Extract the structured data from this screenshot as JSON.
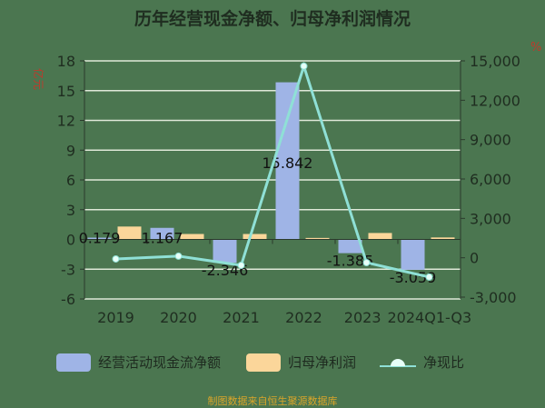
{
  "chart_data": {
    "type": "bar+line",
    "title": "历年经营现金净额、归母净利润情况",
    "ylabel_left": "亿元",
    "ylabel_right": "%",
    "categories": [
      "2019",
      "2020",
      "2021",
      "2022",
      "2023",
      "2024Q1-Q3"
    ],
    "left_axis": {
      "ylim": [
        -6,
        18
      ],
      "ticks": [
        -6,
        -3,
        0,
        3,
        6,
        9,
        12,
        15,
        18
      ]
    },
    "right_axis": {
      "ylim": [
        -3000,
        15000
      ],
      "ticks": [
        "-3,000",
        "0",
        "3,000",
        "6,000",
        "9,000",
        "12,000",
        "15,000"
      ],
      "tick_values": [
        -3000,
        0,
        3000,
        6000,
        9000,
        12000,
        15000
      ]
    },
    "grid": true,
    "legend_placement": "bottom",
    "series": [
      {
        "name": "经营活动现金流净额",
        "type": "bar",
        "axis": "left",
        "color": "#9fb4e6",
        "values": [
          0.179,
          1.167,
          -2.346,
          15.842,
          -1.385,
          -3.059
        ],
        "labels": [
          "0.179",
          "1.167",
          "-2.346",
          "15.842",
          "-1.385",
          "-3.059"
        ]
      },
      {
        "name": "归母净利润",
        "type": "bar",
        "axis": "left",
        "color": "#fbd69a",
        "values": [
          1.3,
          0.55,
          0.55,
          0.15,
          0.65,
          0.2
        ]
      },
      {
        "name": "净现比",
        "type": "line",
        "axis": "right",
        "color": "#8fe0d6",
        "values": [
          -90,
          120,
          -575,
          14600,
          -370,
          -1470
        ]
      }
    ]
  },
  "source": "制图数据来自恒生聚源数据库"
}
